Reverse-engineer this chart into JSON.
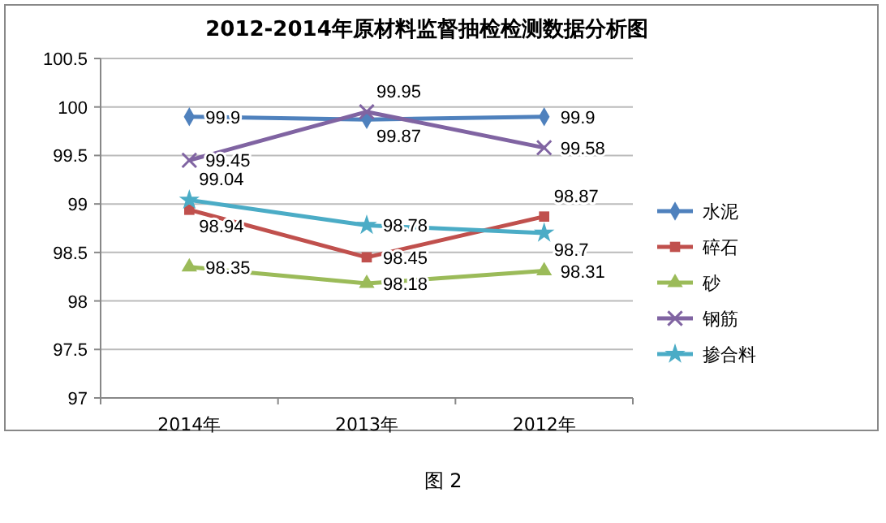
{
  "chart_data": {
    "type": "line",
    "title": "2012-2014年原材料监督抽检检测数据分析图",
    "categories": [
      "2014年",
      "2013年",
      "2012年"
    ],
    "series": [
      {
        "name": "水泥",
        "color": "#4f81bd",
        "marker": "diamond",
        "values": [
          99.9,
          99.87,
          99.9
        ]
      },
      {
        "name": "碎石",
        "color": "#c0504d",
        "marker": "square",
        "values": [
          98.94,
          98.45,
          98.87
        ]
      },
      {
        "name": "砂",
        "color": "#9bbb59",
        "marker": "triangle",
        "values": [
          98.35,
          98.18,
          98.31
        ]
      },
      {
        "name": "钢筋",
        "color": "#8064a2",
        "marker": "cross",
        "values": [
          99.45,
          99.95,
          99.58
        ]
      },
      {
        "name": "掺合料",
        "color": "#4bacc6",
        "marker": "star",
        "values": [
          99.04,
          98.78,
          98.7
        ]
      }
    ],
    "ylim": [
      97,
      100.5
    ],
    "yticks": [
      97,
      97.5,
      98,
      98.5,
      99,
      99.5,
      100,
      100.5
    ],
    "grid": "y",
    "legend": "right",
    "data_labels": true,
    "line_style": "solid",
    "annotations": [
      "图 2"
    ]
  }
}
